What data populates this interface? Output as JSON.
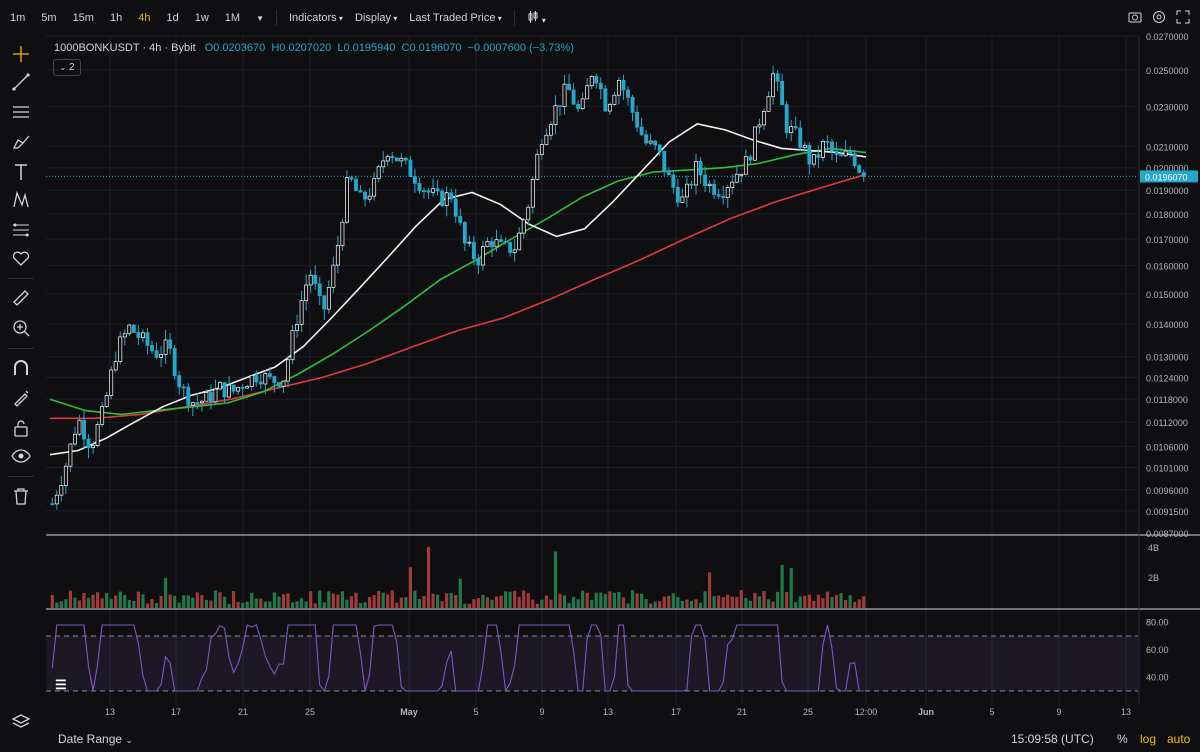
{
  "toolbar": {
    "timeframes": [
      "1m",
      "5m",
      "15m",
      "1h",
      "4h",
      "1d",
      "1w",
      "1M"
    ],
    "active_timeframe": "4h",
    "buttons": [
      "Indicators",
      "Display",
      "Last Traded Price"
    ]
  },
  "legend": {
    "symbol": "1000BONKUSDT · 4h · Bybit",
    "open": "O0.0203670",
    "high": "H0.0207020",
    "low": "L0.0195940",
    "close": "C0.0196070",
    "change": "−0.0007600 (−3.73%)",
    "collapsed_count": "2"
  },
  "bottom": {
    "date_range": "Date Range",
    "clock": "15:09:58 (UTC)",
    "percent": "%",
    "log": "log",
    "auto": "auto"
  },
  "colors": {
    "up": "#26a6c9",
    "down": "#26a6c9",
    "ma_white": "#f2f2f2",
    "ma_green": "#2fbf3a",
    "ma_red": "#e0393e",
    "rsi": "#7e57c2",
    "background": "#0f0f11"
  },
  "chart_data": {
    "type": "candlestick",
    "price_axis_ticks": [
      "0.0270000",
      "0.0250000",
      "0.0230000",
      "0.0210000",
      "0.0200000",
      "0.0190000",
      "0.0180000",
      "0.0170000",
      "0.0160000",
      "0.0150000",
      "0.0140000",
      "0.0130000",
      "0.0124000",
      "0.0118000",
      "0.0112000",
      "0.0106000",
      "0.0101000",
      "0.0096000",
      "0.0091500",
      "0.0087000"
    ],
    "scale": "log",
    "ylim": [
      0.0087,
      0.027
    ],
    "last_price_label": "0.0196070",
    "last_price": 0.019607,
    "x_ticks": [
      "13",
      "17",
      "21",
      "25",
      "May",
      "5",
      "9",
      "13",
      "17",
      "21",
      "25",
      "12:00",
      "Jun",
      "5",
      "9",
      "13"
    ],
    "close_series": [
      0.0093,
      0.0101,
      0.0113,
      0.0106,
      0.0115,
      0.0132,
      0.0139,
      0.0135,
      0.0131,
      0.0133,
      0.0121,
      0.0117,
      0.0118,
      0.0121,
      0.012,
      0.0123,
      0.0125,
      0.0123,
      0.0124,
      0.0142,
      0.0158,
      0.0143,
      0.0162,
      0.0196,
      0.0185,
      0.0192,
      0.0209,
      0.0203,
      0.0197,
      0.019,
      0.0186,
      0.0188,
      0.0168,
      0.0162,
      0.017,
      0.0166,
      0.0167,
      0.0185,
      0.0215,
      0.0228,
      0.024,
      0.0225,
      0.0252,
      0.023,
      0.0245,
      0.0228,
      0.0212,
      0.0208,
      0.0193,
      0.0185,
      0.02,
      0.0192,
      0.019,
      0.0197,
      0.0203,
      0.0225,
      0.0248,
      0.022,
      0.0213,
      0.0201,
      0.0212,
      0.0203,
      0.0207,
      0.0196
    ],
    "ma_white": [
      0.0104,
      0.0105,
      0.0108,
      0.0112,
      0.0116,
      0.0119,
      0.0121,
      0.0124,
      0.0127,
      0.0133,
      0.0142,
      0.0152,
      0.0163,
      0.0175,
      0.0186,
      0.0189,
      0.0184,
      0.0176,
      0.0171,
      0.0174,
      0.0185,
      0.0198,
      0.0212,
      0.0221,
      0.0218,
      0.0213,
      0.0209,
      0.0208,
      0.0207,
      0.0205
    ],
    "ma_green": [
      0.0118,
      0.0115,
      0.0114,
      0.0115,
      0.0116,
      0.0117,
      0.012,
      0.0125,
      0.0131,
      0.0138,
      0.0146,
      0.0155,
      0.0162,
      0.017,
      0.0178,
      0.0187,
      0.0194,
      0.0198,
      0.0199,
      0.02,
      0.0202,
      0.0206,
      0.0209,
      0.0207
    ],
    "ma_red": [
      0.0113,
      0.0113,
      0.0114,
      0.0116,
      0.0118,
      0.0121,
      0.0124,
      0.0128,
      0.0133,
      0.0138,
      0.0142,
      0.0148,
      0.0155,
      0.0162,
      0.017,
      0.0178,
      0.0185,
      0.0191,
      0.0197
    ],
    "volume_axis_ticks": [
      "4B",
      "2B"
    ],
    "rsi_axis_ticks": [
      "80.00",
      "60.00",
      "40.00"
    ],
    "rsi_bounds": [
      70,
      30
    ]
  }
}
